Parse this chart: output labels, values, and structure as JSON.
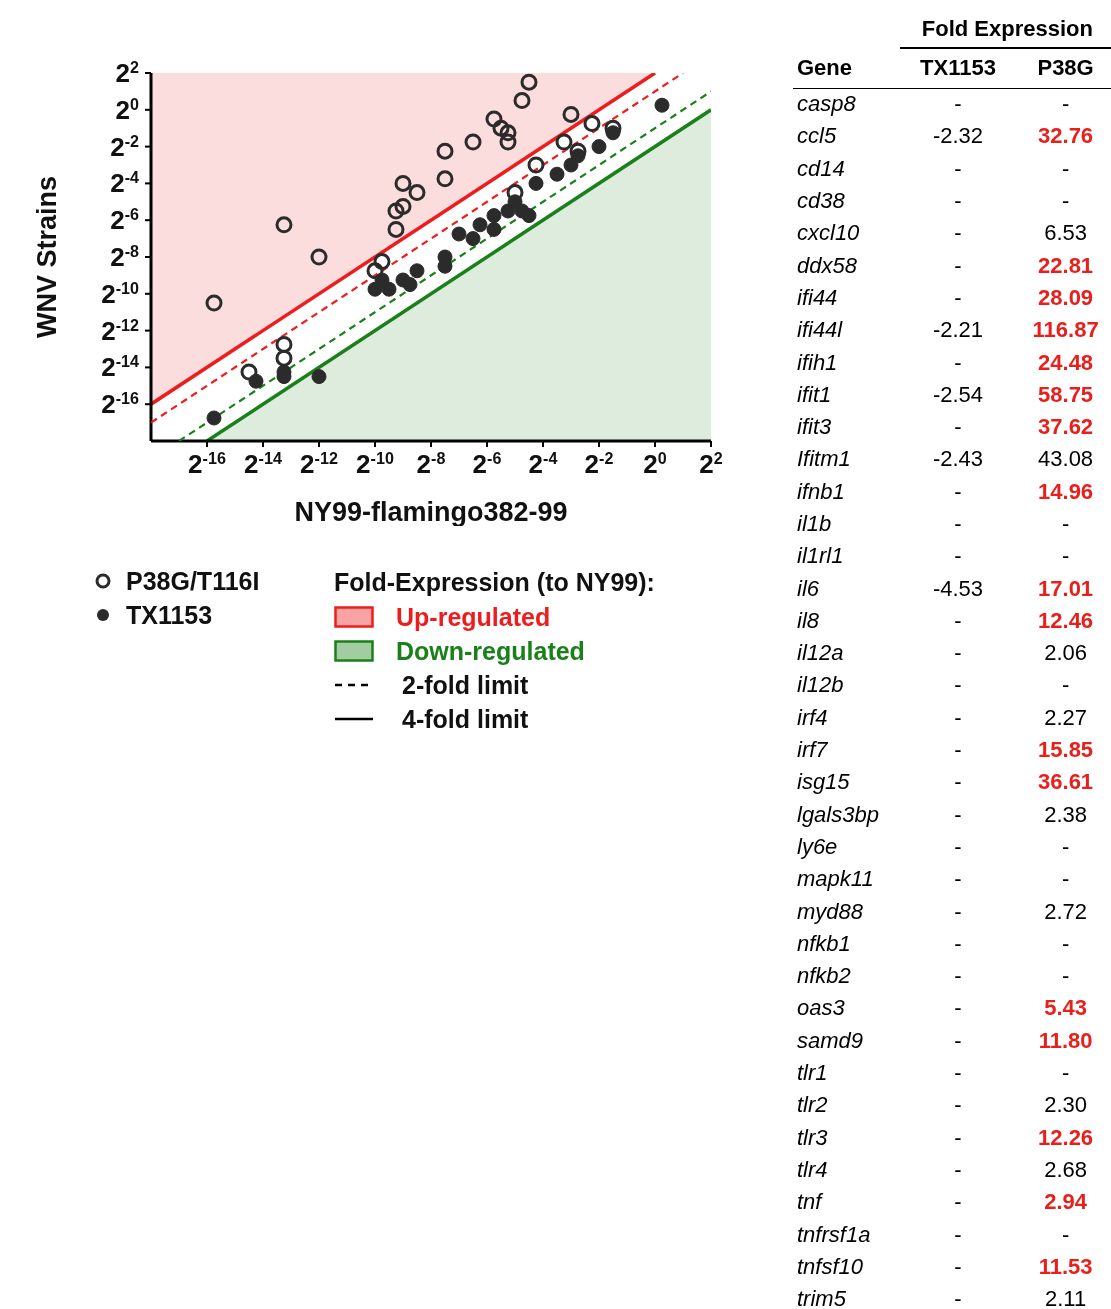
{
  "chart_data": [
    {
      "type": "scatter",
      "xlabel": "NY99-flamingo382-99",
      "ylabel": "WNV Strains",
      "legend_title": "Fold-Expression (to NY99):",
      "log": "xy",
      "legend": "bottom",
      "annotations": [
        "2-fold limit",
        "4-fold limit"
      ],
      "xlim": [
        3.814697265625e-06,
        4
      ],
      "ylim": [
        3.814697265625e-06,
        4
      ],
      "xticks": [
        {
          "value": 1.52587890625e-05,
          "label": "2$^{-16}$"
        },
        {
          "value": 6.103515625e-05,
          "label": "2$^{-14}$"
        },
        {
          "value": 0.000244140625,
          "label": "2$^{-12}$"
        },
        {
          "value": 0.0009765625,
          "label": "2$^{-10}$"
        },
        {
          "value": 0.00390625,
          "label": "2$^{-8}$"
        },
        {
          "value": 0.015625,
          "label": "2$^{-6}$"
        },
        {
          "value": 0.0625,
          "label": "2$^{-4}$"
        },
        {
          "value": 0.25,
          "label": "2$^{-2}$"
        },
        {
          "value": 1,
          "label": "2$^{0}$"
        },
        {
          "value": 4,
          "label": "2$^{2}$"
        }
      ],
      "yticks": [
        {
          "value": 1.52587890625e-05,
          "label": "2$^{-16}$"
        },
        {
          "value": 6.103515625e-05,
          "label": "2$^{-14}$"
        },
        {
          "value": 0.000244140625,
          "label": "2$^{-12}$"
        },
        {
          "value": 0.0009765625,
          "label": "2$^{-10}$"
        },
        {
          "value": 0.00390625,
          "label": "2$^{-8}$"
        },
        {
          "value": 0.015625,
          "label": "2$^{-6}$"
        },
        {
          "value": 0.0625,
          "label": "2$^{-4}$"
        },
        {
          "value": 0.25,
          "label": "2$^{-2}$"
        },
        {
          "value": 1,
          "label": "2$^{0}$"
        },
        {
          "value": 4,
          "label": "2$^{2}$"
        }
      ],
      "series": [
        {
          "type": "area",
          "name": "Up-regulated",
          "color": "#ee1c1c",
          "line_style": "solid",
          "x": [
            3.814697265625e-06,
            1
          ],
          "values": [
            1.52587890625e-05,
            4
          ]
        },
        {
          "type": "area",
          "name": "Down-regulated",
          "color": "#1a801a",
          "line_style": "solid",
          "x": [
            1.52587890625e-05,
            4
          ],
          "values": [
            3.814697265625e-06,
            1
          ]
        },
        {
          "type": "line",
          "color": "#ee1c1c",
          "line_style": "dashed",
          "marker": "none",
          "x": [
            3.814697265625e-06,
            2
          ],
          "values": [
            7.62939453125e-06,
            4
          ]
        },
        {
          "type": "line",
          "color": "#1a801a",
          "line_style": "dashed",
          "marker": "none",
          "x": [
            7.62939453125e-06,
            4
          ],
          "values": [
            3.814697265625e-06,
            2
          ]
        },
        {
          "type": "scatter",
          "name": "P38G/T116I",
          "color": "#2b2b2b",
          "marker": "circle",
          "x": [
            1.815e-05,
            4.316e-05,
            0.0001026,
            0.0001026,
            0.0001026,
            0.0002441,
            0.0009766,
            0.001161,
            0.001642,
            0.001642,
            0.001953,
            0.001953,
            0.002762,
            0.005524,
            0.005524,
            0.01105,
            0.01858,
            0.0221,
            0.02628,
            0.02628,
            0.03125,
            0.03716,
            0.04419,
            0.05256,
            0.1051,
            0.125,
            0.1487,
            0.2102,
            0.3536
          ],
          "values": [
            0.0006905,
            5.132e-05,
            0.0001452,
            8.632e-05,
            0.01314,
            0.003906,
            0.002323,
            0.003285,
            0.01105,
            0.0221,
            0.02628,
            0.0625,
            0.04419,
            0.2102,
            0.07433,
            0.2973,
            0.7071,
            0.5,
            0.4204,
            0.2973,
            0.04419,
            1.414,
            2.828,
            0.125,
            0.2973,
            0.8409,
            0.2102,
            0.5946,
            0.5
          ]
        },
        {
          "type": "scatter",
          "name": "TX1153",
          "color": "#2b2b2b",
          "marker": "circle",
          "x": [
            1.815e-05,
            5.132e-05,
            0.0001026,
            0.0001026,
            0.0002441,
            0.0009766,
            0.001161,
            0.001381,
            0.001953,
            0.002323,
            0.002762,
            0.005524,
            0.005524,
            0.007813,
            0.01105,
            0.01314,
            0.01858,
            0.01858,
            0.02628,
            0.03125,
            0.03716,
            0.04419,
            0.05256,
            0.08839,
            0.125,
            0.1487,
            0.25,
            0.3536,
            1.189
          ],
          "values": [
            9.073e-06,
            3.629e-05,
            5.132e-05,
            4.316e-05,
            4.316e-05,
            0.001161,
            0.001642,
            0.001161,
            0.001642,
            0.001381,
            0.002323,
            0.002762,
            0.003906,
            0.009291,
            0.007813,
            0.01314,
            0.01105,
            0.01858,
            0.0221,
            0.03125,
            0.0221,
            0.01858,
            0.0625,
            0.08839,
            0.125,
            0.1768,
            0.25,
            0.4204,
            1.189
          ]
        }
      ]
    },
    {
      "type": "other",
      "title": "Fold Expression",
      "ylabel": "Gene",
      "data_labels": true,
      "categories": [
        "casp8",
        "ccl5",
        "cd14",
        "cd38",
        "cxcl10",
        "ddx58",
        "ifi44",
        "ifi44l",
        "ifih1",
        "ifit1",
        "ifit3",
        "Ifitm1",
        "ifnb1",
        "il1b",
        "il1rl1",
        "il6",
        "il8",
        "il12a",
        "il12b",
        "irf4",
        "irf7",
        "isg15",
        "lgals3bp",
        "ly6e",
        "mapk11",
        "myd88",
        "nfkb1",
        "nfkb2",
        "oas3",
        "samd9",
        "tlr1",
        "tlr2",
        "tlr3",
        "tlr4",
        "tnf",
        "tnfrsf1a",
        "tnfsf10",
        "trim5"
      ],
      "series": [
        {
          "name": "TX1153",
          "color": "#000000",
          "values": [
            null,
            -2.32,
            null,
            null,
            null,
            null,
            null,
            -2.21,
            null,
            -2.54,
            null,
            -2.43,
            null,
            null,
            null,
            -4.53,
            null,
            null,
            null,
            null,
            null,
            null,
            null,
            null,
            null,
            null,
            null,
            null,
            null,
            null,
            null,
            null,
            null,
            null,
            null,
            null,
            null,
            null
          ],
          "value_labels": [
            "-",
            "-2.32",
            "-",
            "-",
            "-",
            "-",
            "-",
            "-2.21",
            "-",
            "-2.54",
            "-",
            "-2.43",
            "-",
            "-",
            "-",
            "-4.53",
            "-",
            "-",
            "-",
            "-",
            "-",
            "-",
            "-",
            "-",
            "-",
            "-",
            "-",
            "-",
            "-",
            "-",
            "-",
            "-",
            "-",
            "-",
            "-",
            "-",
            "-",
            "-"
          ]
        },
        {
          "name": "P38G",
          "color": "#000000",
          "values": [
            null,
            32.76,
            null,
            null,
            6.53,
            22.81,
            28.09,
            116.87,
            24.48,
            58.75,
            37.62,
            43.08,
            14.96,
            null,
            null,
            17.01,
            12.46,
            2.06,
            null,
            2.27,
            15.85,
            36.61,
            2.38,
            null,
            null,
            2.72,
            null,
            null,
            5.43,
            11.8,
            null,
            2.3,
            12.26,
            2.68,
            2.94,
            null,
            11.53,
            2.11
          ],
          "value_labels": [
            "-",
            "32.76",
            "-",
            "-",
            "6.53",
            "22.81",
            "28.09",
            "116.87",
            "24.48",
            "58.75",
            "37.62",
            "43.08",
            "14.96",
            "-",
            "-",
            "17.01",
            "12.46",
            "2.06",
            "-",
            "2.27",
            "15.85",
            "36.61",
            "2.38",
            "-",
            "-",
            "2.72",
            "-",
            "-",
            "5.43",
            "11.80",
            "-",
            "2.30",
            "12.26",
            "2.68",
            "2.94",
            "-",
            "11.53",
            "2.11"
          ],
          "colors": [
            "#000000",
            "#e8201c",
            "#000000",
            "#000000",
            "#000000",
            "#e8201c",
            "#e8201c",
            "#e8201c",
            "#e8201c",
            "#e8201c",
            "#e8201c",
            "#000000",
            "#e8201c",
            "#000000",
            "#000000",
            "#e8201c",
            "#e8201c",
            "#000000",
            "#000000",
            "#000000",
            "#e8201c",
            "#e8201c",
            "#000000",
            "#000000",
            "#000000",
            "#000000",
            "#000000",
            "#000000",
            "#e8201c",
            "#e8201c",
            "#000000",
            "#000000",
            "#e8201c",
            "#000000",
            "#e8201c",
            "#000000",
            "#e8201c",
            "#000000"
          ]
        }
      ]
    }
  ]
}
